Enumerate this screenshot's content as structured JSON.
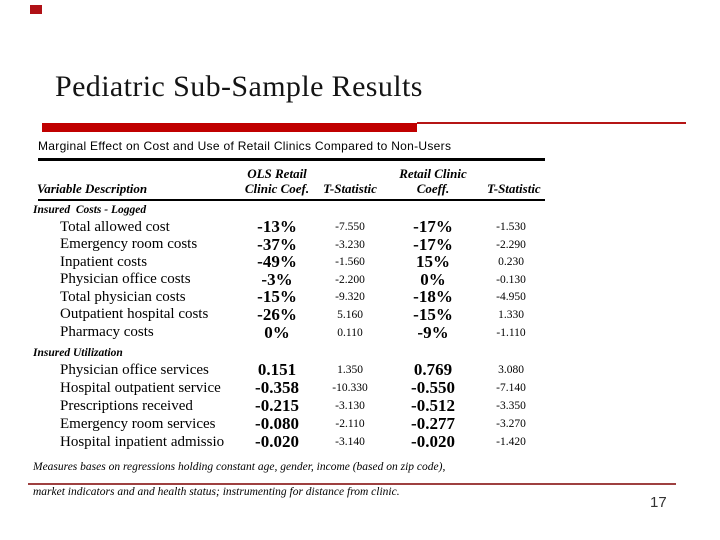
{
  "slide": {
    "title": "Pediatric Sub-Sample Results",
    "page_number": "17",
    "accent_color": "#c00000"
  },
  "table": {
    "title": "Marginal Effect on Cost and Use of Retail Clinics Compared to Non-Users",
    "headers": {
      "variable": "Variable Description",
      "ols_line1": "OLS Retail",
      "ols_line2": "Clinic Coef.",
      "t1": "T-Statistic",
      "retail_line1": "Retail Clinic",
      "retail_line2": "Coeff.",
      "t2": "T-Statistic"
    },
    "sections": [
      {
        "label": "Insured  Costs - Logged",
        "rows": [
          {
            "label": "Total allowed cost",
            "coef": "-13%",
            "t1": "-7.550",
            "coef2": "-17%",
            "t2": "-1.530"
          },
          {
            "label": "Emergency room costs",
            "coef": "-37%",
            "t1": "-3.230",
            "coef2": "-17%",
            "t2": "-2.290"
          },
          {
            "label": "Inpatient costs",
            "coef": "-49%",
            "t1": "-1.560",
            "coef2": "15%",
            "t2": "0.230"
          },
          {
            "label": "Physician office costs",
            "coef": "-3%",
            "t1": "-2.200",
            "coef2": "0%",
            "t2": "-0.130"
          },
          {
            "label": "Total physician costs",
            "coef": "-15%",
            "t1": "-9.320",
            "coef2": "-18%",
            "t2": "-4.950"
          },
          {
            "label": "Outpatient hospital costs",
            "coef": "-26%",
            "t1": "5.160",
            "coef2": "-15%",
            "t2": "1.330"
          },
          {
            "label": "Pharmacy costs",
            "coef": "0%",
            "t1": "0.110",
            "coef2": "-9%",
            "t2": "-1.110"
          }
        ]
      },
      {
        "label": "Insured Utilization",
        "rows": [
          {
            "label": "Physician office services",
            "coef": "0.151",
            "t1": "1.350",
            "coef2": "0.769",
            "t2": "3.080"
          },
          {
            "label": "Hospital outpatient service",
            "coef": "-0.358",
            "t1": "-10.330",
            "coef2": "-0.550",
            "t2": "-7.140"
          },
          {
            "label": "Prescriptions received",
            "coef": "-0.215",
            "t1": "-3.130",
            "coef2": "-0.512",
            "t2": "-3.350"
          },
          {
            "label": "Emergency room services",
            "coef": "-0.080",
            "t1": "-2.110",
            "coef2": "-0.277",
            "t2": "-3.270"
          },
          {
            "label": "Hospital inpatient admissio",
            "coef": "-0.020",
            "t1": "-3.140",
            "coef2": "-0.020",
            "t2": "-1.420"
          }
        ]
      }
    ],
    "footnote_line1": "Measures bases on regressions holding constant age, gender, income (based on zip code),",
    "footnote_line2": "market indicators and and health status; instrumenting for distance from clinic."
  }
}
